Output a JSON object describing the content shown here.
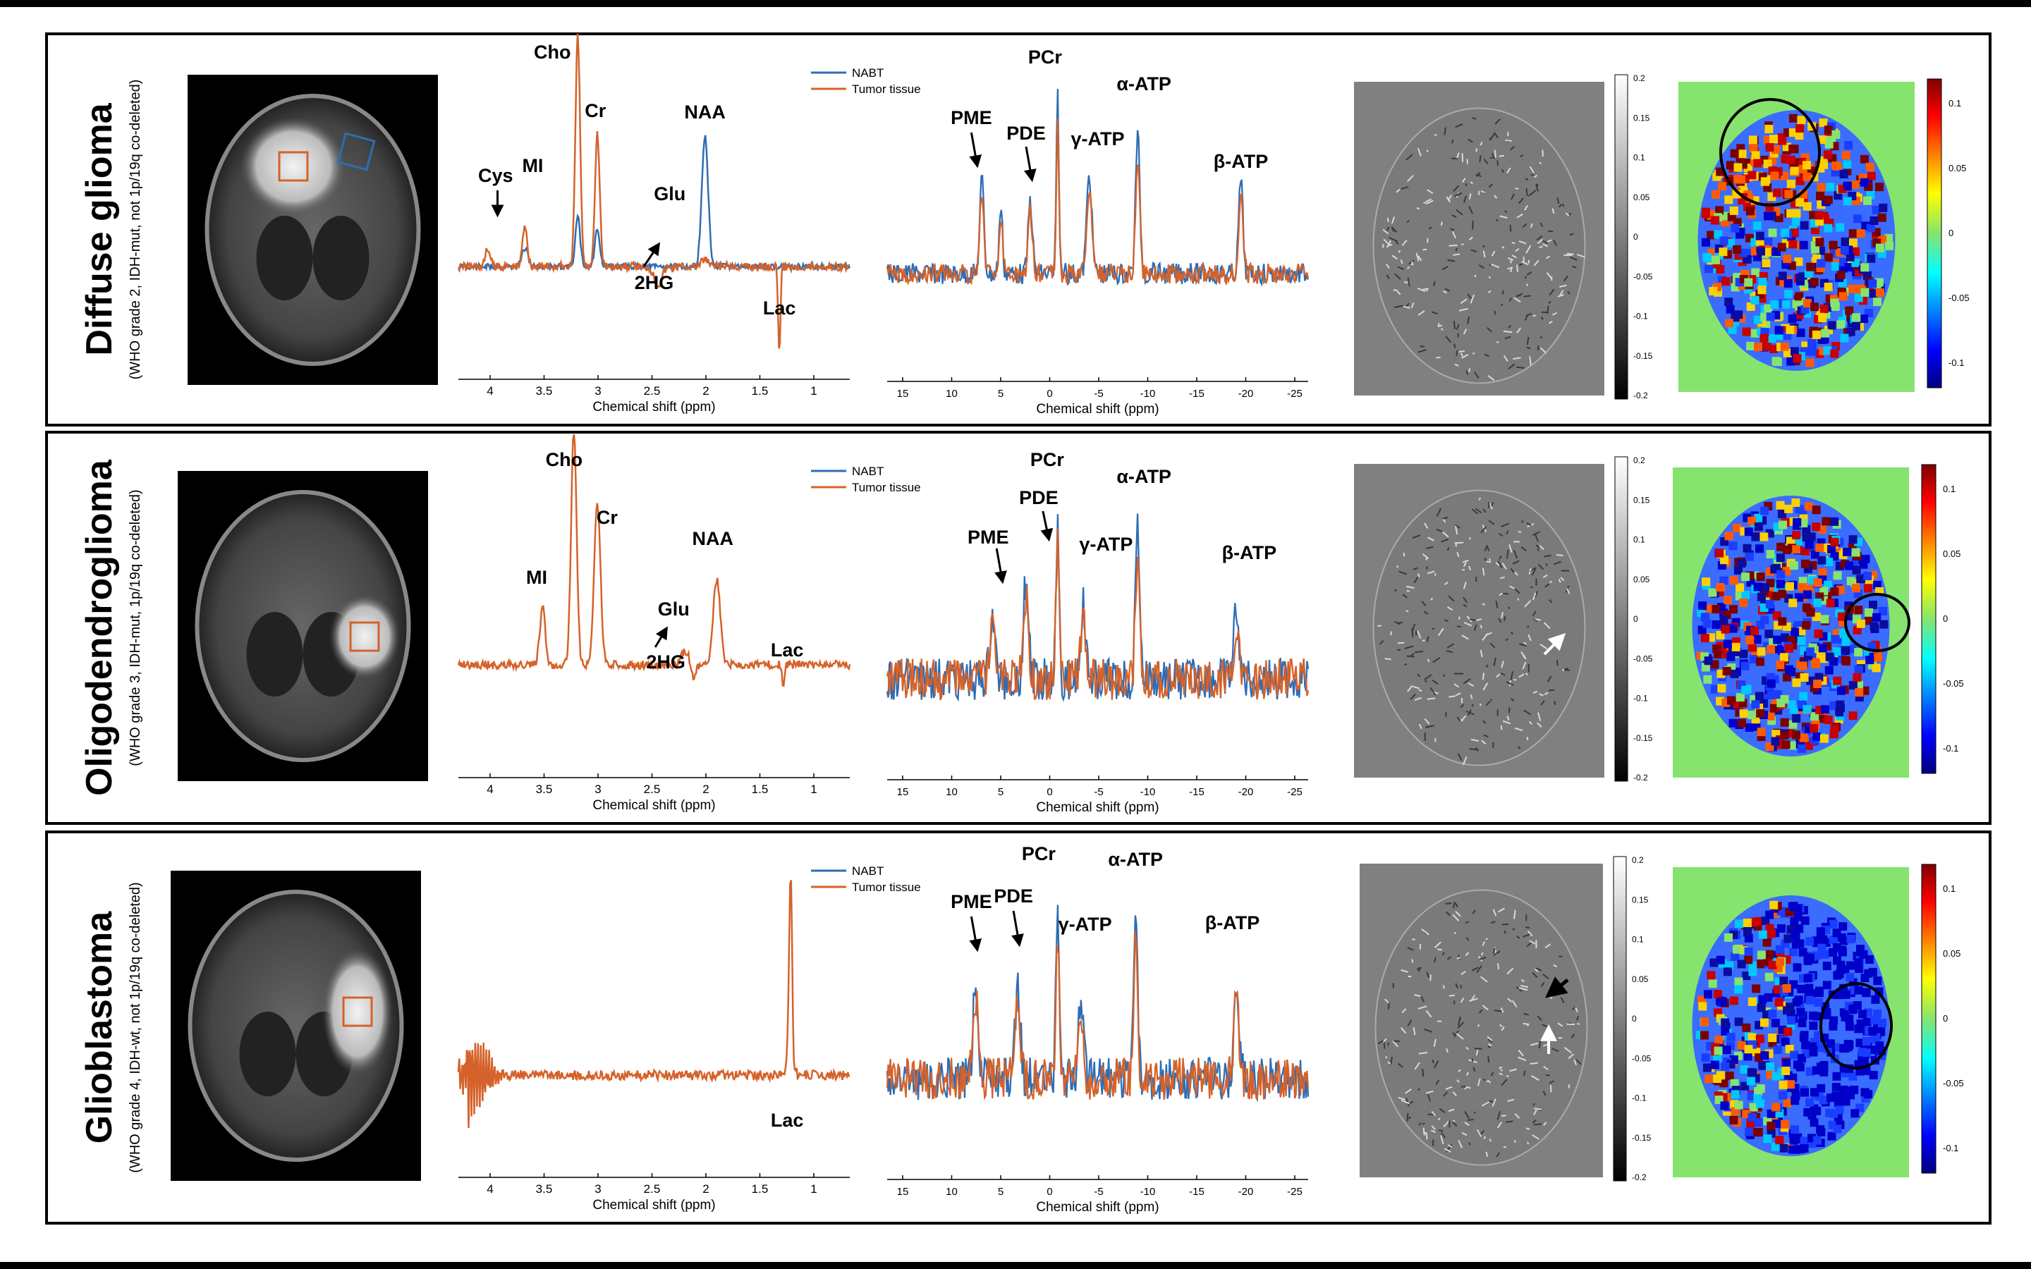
{
  "colors": {
    "nabt": "#2E6DB4",
    "tumor": "#D5622A",
    "frame": "#000000",
    "paper": "#FFFFFF",
    "qsm_bg": "#808080",
    "map_bg": "#86E46E"
  },
  "rows": [
    {
      "title": "Diffuse glioma",
      "subtitle": "(WHO grade 2, IDH-mut, not 1p/19q co-deleted)",
      "legend": [
        "NABT",
        "Tumor tissue"
      ],
      "h_peaks": [
        "Cho",
        "Cr",
        "NAA",
        "MI",
        "Cys",
        "Glu",
        "2HG",
        "Lac"
      ],
      "p_peaks": [
        "PCr",
        "PME",
        "PDE",
        "γ-ATP",
        "α-ATP",
        "β-ATP"
      ],
      "h_axis": {
        "label": "Chemical shift (ppm)",
        "ticks": [
          "4",
          "3.5",
          "3",
          "2.5",
          "2",
          "1.5",
          "1"
        ]
      },
      "p_axis": {
        "label": "Chemical shift (ppm)",
        "ticks": [
          "15",
          "10",
          "5",
          "0",
          "-5",
          "-10",
          "-15",
          "-20",
          "-25"
        ]
      },
      "qsm_scale": [
        "0.2",
        "0.15",
        "0.1",
        "0.05",
        "0",
        "-0.05",
        "-0.1",
        "-0.15",
        "-0.2"
      ],
      "map_scale": [
        "0.1",
        "0.05",
        "0",
        "-0.05",
        "-0.1"
      ]
    },
    {
      "title": "Oligodendroglioma",
      "subtitle": "(WHO grade 3, IDH-mut, 1p/19q co-deleted)",
      "legend": [
        "NABT",
        "Tumor tissue"
      ],
      "h_peaks": [
        "Cho",
        "Cr",
        "NAA",
        "MI",
        "Glu",
        "2HG",
        "Lac"
      ],
      "p_peaks": [
        "PCr",
        "PDE",
        "PME",
        "γ-ATP",
        "α-ATP",
        "β-ATP"
      ],
      "h_axis": {
        "label": "Chemical shift (ppm)",
        "ticks": [
          "4",
          "3.5",
          "3",
          "2.5",
          "2",
          "1.5",
          "1"
        ]
      },
      "p_axis": {
        "label": "Chemical shift (ppm)",
        "ticks": [
          "15",
          "10",
          "5",
          "0",
          "-5",
          "-10",
          "-15",
          "-20",
          "-25"
        ]
      },
      "qsm_scale": [
        "0.2",
        "0.15",
        "0.1",
        "0.05",
        "0",
        "-0.05",
        "-0.1",
        "-0.15",
        "-0.2"
      ],
      "map_scale": [
        "0.1",
        "0.05",
        "0",
        "-0.05",
        "-0.1"
      ]
    },
    {
      "title": "Glioblastoma",
      "subtitle": "(WHO grade 4, IDH-wt, not 1p/19q co-deleted)",
      "legend": [
        "NABT",
        "Tumor tissue"
      ],
      "h_peaks": [
        "Lac"
      ],
      "p_peaks": [
        "PCr",
        "PME",
        "PDE",
        "γ-ATP",
        "α-ATP",
        "β-ATP"
      ],
      "h_axis": {
        "label": "Chemical shift (ppm)",
        "ticks": [
          "4",
          "3.5",
          "3",
          "2.5",
          "2",
          "1.5",
          "1"
        ]
      },
      "p_axis": {
        "label": "Chemical shift (ppm)",
        "ticks": [
          "15",
          "10",
          "5",
          "0",
          "-5",
          "-10",
          "-15",
          "-20",
          "-25"
        ]
      },
      "qsm_scale": [
        "0.2",
        "0.15",
        "0.1",
        "0.05",
        "0",
        "-0.05",
        "-0.1",
        "-0.15",
        "-0.2"
      ],
      "map_scale": [
        "0.1",
        "0.05",
        "0",
        "-0.05",
        "-0.1"
      ]
    }
  ]
}
